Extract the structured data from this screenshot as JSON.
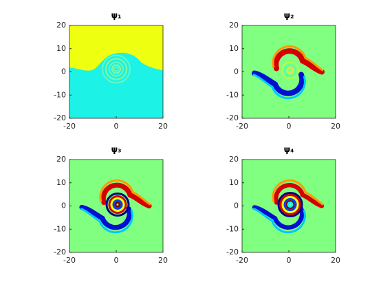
{
  "chart_data": [
    {
      "type": "image",
      "title": "ψ₁",
      "xlim": [
        -20,
        20
      ],
      "ylim": [
        -20,
        20
      ],
      "xticks": [
        -20,
        0,
        20
      ],
      "yticks": [
        -20,
        -10,
        0,
        10,
        20
      ]
    },
    {
      "type": "image",
      "title": "ψ₂",
      "xlim": [
        -20,
        20
      ],
      "ylim": [
        -20,
        20
      ],
      "xticks": [
        -20,
        0,
        20
      ],
      "yticks": [
        -20,
        -10,
        0,
        10,
        20
      ]
    },
    {
      "type": "image",
      "title": "ψ₃",
      "xlim": [
        -20,
        20
      ],
      "ylim": [
        -20,
        20
      ],
      "xticks": [
        -20,
        0,
        20
      ],
      "yticks": [
        -20,
        -10,
        0,
        10,
        20
      ]
    },
    {
      "type": "image",
      "title": "ψ₄",
      "xlim": [
        -20,
        20
      ],
      "ylim": [
        -20,
        20
      ],
      "xticks": [
        -20,
        0,
        20
      ],
      "yticks": [
        -20,
        -10,
        0,
        10,
        20
      ]
    }
  ]
}
